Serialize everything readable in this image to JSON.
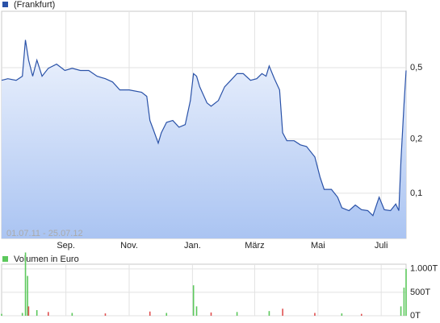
{
  "chart_data": [
    {
      "type": "area",
      "log_scale": true,
      "grid": true,
      "annotation": "01.07.11 - 25.07.12",
      "xlim": [
        "2011-07-01",
        "2012-07-25"
      ],
      "xticks": [
        {
          "value": "2011-09-01",
          "label": "Sep."
        },
        {
          "value": "2011-11-01",
          "label": "Nov."
        },
        {
          "value": "2012-01-01",
          "label": "Jan."
        },
        {
          "value": "2012-03-01",
          "label": "März"
        },
        {
          "value": "2012-05-01",
          "label": "Mai"
        },
        {
          "value": "2012-07-01",
          "label": "Juli"
        }
      ],
      "ylim": [
        0.056,
        1.03
      ],
      "yticks": [
        {
          "value": 0.1,
          "label": "0,1"
        },
        {
          "value": 0.2,
          "label": "0,2"
        },
        {
          "value": 0.5,
          "label": "0,5"
        }
      ],
      "x": [
        "2011-07-01",
        "2011-07-07",
        "2011-07-15",
        "2011-07-21",
        "2011-07-24",
        "2011-07-27",
        "2011-07-31",
        "2011-08-04",
        "2011-08-09",
        "2011-08-15",
        "2011-08-23",
        "2011-08-31",
        "2011-09-07",
        "2011-09-15",
        "2011-09-23",
        "2011-10-01",
        "2011-10-09",
        "2011-10-16",
        "2011-10-23",
        "2011-11-01",
        "2011-11-13",
        "2011-11-18",
        "2011-11-21",
        "2011-11-24",
        "2011-11-29",
        "2011-12-02",
        "2011-12-07",
        "2011-12-13",
        "2011-12-19",
        "2011-12-25",
        "2011-12-30",
        "2012-01-02",
        "2012-01-05",
        "2012-01-08",
        "2012-01-15",
        "2012-01-19",
        "2012-01-26",
        "2012-02-01",
        "2012-02-07",
        "2012-02-13",
        "2012-02-19",
        "2012-02-26",
        "2012-03-03",
        "2012-03-08",
        "2012-03-12",
        "2012-03-15",
        "2012-03-20",
        "2012-03-25",
        "2012-03-28",
        "2012-04-01",
        "2012-04-08",
        "2012-04-14",
        "2012-04-20",
        "2012-04-28",
        "2012-05-03",
        "2012-05-07",
        "2012-05-14",
        "2012-05-20",
        "2012-05-24",
        "2012-05-31",
        "2012-06-06",
        "2012-06-12",
        "2012-06-18",
        "2012-06-23",
        "2012-06-29",
        "2012-07-04",
        "2012-07-10",
        "2012-07-15",
        "2012-07-18",
        "2012-07-20",
        "2012-07-23",
        "2012-07-25"
      ],
      "series": [
        {
          "name": "(Frankfurt)",
          "color": "#2a52a8",
          "fill_top": "#eef3fd",
          "fill_bottom": "#aac4f2",
          "values": [
            0.425,
            0.434,
            0.425,
            0.448,
            0.713,
            0.551,
            0.448,
            0.551,
            0.448,
            0.496,
            0.523,
            0.482,
            0.496,
            0.482,
            0.482,
            0.448,
            0.434,
            0.416,
            0.376,
            0.376,
            0.365,
            0.346,
            0.254,
            0.228,
            0.19,
            0.217,
            0.248,
            0.254,
            0.233,
            0.241,
            0.328,
            0.463,
            0.448,
            0.391,
            0.318,
            0.305,
            0.328,
            0.391,
            0.425,
            0.463,
            0.463,
            0.425,
            0.434,
            0.463,
            0.448,
            0.511,
            0.434,
            0.376,
            0.217,
            0.196,
            0.196,
            0.186,
            0.182,
            0.159,
            0.123,
            0.105,
            0.105,
            0.095,
            0.083,
            0.08,
            0.086,
            0.081,
            0.08,
            0.075,
            0.095,
            0.081,
            0.08,
            0.087,
            0.08,
            0.151,
            0.312,
            0.482
          ]
        }
      ]
    },
    {
      "type": "bar",
      "grid": true,
      "ylim": [
        0,
        1100
      ],
      "yticks": [
        {
          "value": 0,
          "label": "0T"
        },
        {
          "value": 500,
          "label": "500T"
        },
        {
          "value": 1000,
          "label": "1.000T"
        }
      ],
      "x": [
        "2011-07-01",
        "2011-07-21",
        "2011-07-24",
        "2011-07-26",
        "2011-07-27",
        "2011-08-04",
        "2011-08-15",
        "2011-09-07",
        "2011-10-09",
        "2011-11-21",
        "2011-12-07",
        "2012-01-02",
        "2012-01-05",
        "2012-01-19",
        "2012-02-13",
        "2012-03-15",
        "2012-03-28",
        "2012-04-28",
        "2012-05-24",
        "2012-06-12",
        "2012-07-20",
        "2012-07-23",
        "2012-07-25"
      ],
      "series": [
        {
          "name": "Volumen in Euro",
          "color": "#5cc85c",
          "colors": [
            "#5cc85c",
            "#5cc85c",
            "#5cc85c",
            "#5cc85c",
            "#e05050",
            "#5cc85c",
            "#e05050",
            "#5cc85c",
            "#e05050",
            "#e05050",
            "#5cc85c",
            "#5cc85c",
            "#5cc85c",
            "#e05050",
            "#5cc85c",
            "#5cc85c",
            "#e05050",
            "#e05050",
            "#5cc85c",
            "#e05050",
            "#5cc85c",
            "#5cc85c",
            "#5cc85c"
          ],
          "values": [
            40,
            60,
            1350,
            850,
            200,
            120,
            80,
            60,
            50,
            90,
            60,
            650,
            200,
            70,
            80,
            100,
            150,
            60,
            50,
            40,
            200,
            600,
            1000
          ]
        }
      ]
    }
  ]
}
